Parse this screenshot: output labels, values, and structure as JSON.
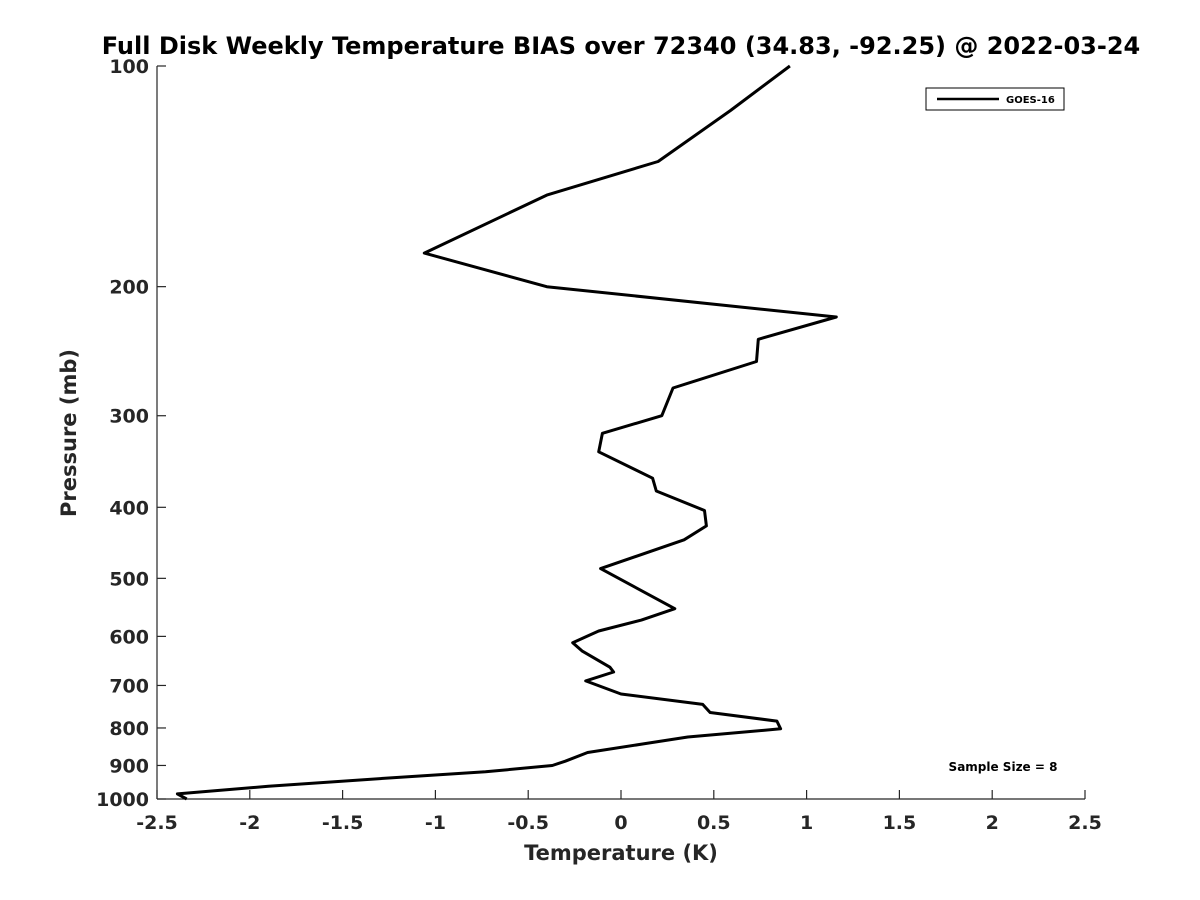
{
  "chart_data": {
    "type": "line",
    "title": "Full Disk Weekly Temperature BIAS over 72340 (34.83, -92.25) @ 2022-03-24",
    "xlabel": "Temperature (K)",
    "ylabel": "Pressure (mb)",
    "xlim": [
      -2.5,
      2.5
    ],
    "ylim": [
      100,
      1000
    ],
    "y_scale": "log",
    "y_reversed": true,
    "x_ticks": [
      -2.5,
      -2,
      -1.5,
      -1,
      -0.5,
      0,
      0.5,
      1,
      1.5,
      2,
      2.5
    ],
    "x_tick_labels": [
      "-2.5",
      "-2",
      "-1.5",
      "-1",
      "-0.5",
      "0",
      "0.5",
      "1",
      "1.5",
      "2",
      "2.5"
    ],
    "y_ticks": [
      100,
      200,
      300,
      400,
      500,
      600,
      700,
      800,
      900,
      1000
    ],
    "y_tick_labels": [
      "100",
      "200",
      "300",
      "400",
      "500",
      "600",
      "700",
      "800",
      "900",
      "1000"
    ],
    "grid": false,
    "legend_position": "top-right",
    "annotation": "Sample Size = 8",
    "series": [
      {
        "name": "GOES-16",
        "color": "#000000",
        "points": [
          {
            "x": 0.91,
            "y": 100
          },
          {
            "x": 0.59,
            "y": 115
          },
          {
            "x": 0.2,
            "y": 135
          },
          {
            "x": -0.4,
            "y": 150
          },
          {
            "x": -1.06,
            "y": 180
          },
          {
            "x": -0.4,
            "y": 200
          },
          {
            "x": 1.16,
            "y": 220
          },
          {
            "x": 0.74,
            "y": 236
          },
          {
            "x": 0.73,
            "y": 253
          },
          {
            "x": 0.28,
            "y": 275
          },
          {
            "x": 0.22,
            "y": 300
          },
          {
            "x": -0.1,
            "y": 317
          },
          {
            "x": -0.12,
            "y": 336
          },
          {
            "x": 0.17,
            "y": 365
          },
          {
            "x": 0.19,
            "y": 380
          },
          {
            "x": 0.45,
            "y": 404
          },
          {
            "x": 0.46,
            "y": 424
          },
          {
            "x": 0.34,
            "y": 443
          },
          {
            "x": -0.11,
            "y": 485
          },
          {
            "x": 0.29,
            "y": 550
          },
          {
            "x": 0.11,
            "y": 570
          },
          {
            "x": -0.12,
            "y": 590
          },
          {
            "x": -0.26,
            "y": 612
          },
          {
            "x": -0.21,
            "y": 628
          },
          {
            "x": -0.06,
            "y": 661
          },
          {
            "x": -0.04,
            "y": 671
          },
          {
            "x": -0.19,
            "y": 690
          },
          {
            "x": 0.0,
            "y": 719
          },
          {
            "x": 0.44,
            "y": 743
          },
          {
            "x": 0.48,
            "y": 762
          },
          {
            "x": 0.84,
            "y": 783
          },
          {
            "x": 0.86,
            "y": 802
          },
          {
            "x": 0.36,
            "y": 823
          },
          {
            "x": 0.12,
            "y": 841
          },
          {
            "x": -0.18,
            "y": 864
          },
          {
            "x": -0.3,
            "y": 888
          },
          {
            "x": -0.37,
            "y": 900
          },
          {
            "x": -0.73,
            "y": 918
          },
          {
            "x": -1.22,
            "y": 935
          },
          {
            "x": -1.9,
            "y": 961
          },
          {
            "x": -2.39,
            "y": 984
          },
          {
            "x": -2.34,
            "y": 1000
          }
        ]
      }
    ]
  }
}
